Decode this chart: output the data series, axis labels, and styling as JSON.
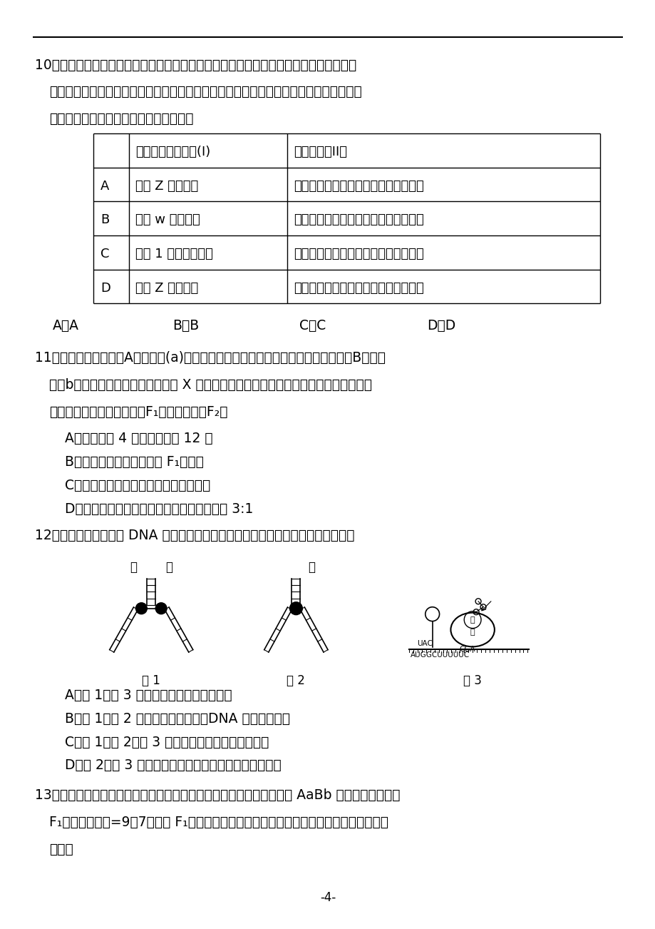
{
  "page_num": "-4-",
  "q10_text1": "10．某养鸡场主以卖肉鸡为主要创收手段。由于公鸡肉味相对于母鸡更鲜美，其价格也更",
  "q10_text2": "高。场主想在幼年期就卖掉雌鸡，留下雄鸡以节约成本。根据伴性遗传的特点，请你帮他",
  "q10_text3": "选择一种合适的遗传标志物和恰当的方案",
  "table_header_col1": "遗传标志物的位置(I)",
  "table_header_col2": "杂交类型（II）",
  "table_row_A_col0": "A",
  "table_row_A_col1": "位于 Z 染色体上",
  "table_row_A_col2": "隐性表型的雌鸡与显性纯合子雄鸡杂交",
  "table_row_B_col0": "B",
  "table_row_B_col1": "位于 w 染色体上",
  "table_row_B_col2": "隐性表型的雌鸡与显性纯合子雄鸡杂交",
  "table_row_C_col0": "C",
  "table_row_C_col1": "位于 1 条常染色体上",
  "table_row_C_col2": "隐性表型的雌鸡与显性纯合子雄鸡杂交",
  "table_row_D_col0": "D",
  "table_row_D_col1": "位于 Z 染色体上",
  "table_row_D_col2": "显性表型的雌鸡与隐性纯合子雄鸡杂交",
  "q10_optA": "A．A",
  "q10_optB": "B．B",
  "q10_optC": "C．C",
  "q10_optD": "D．D",
  "q11_text1": "11．果蝇中，正常翅（A）对短翅(a)为显性，相关等位基因位于常染色体上；红眼（B）对白",
  "q11_text2": "眼（b）为显性，相关等位基因位于 X 染色体上。现有一只纯合红眼短翅雌果蝇和一只纯",
  "q11_text3": "合白眼正常翅雄果蝇杂交，F₁雌雄交配，则F₂中",
  "q11_A": "A．表现型有 4 种，基因型有 12 种",
  "q11_B": "B．雄果蝇的红眼基因来自 F₁的父方",
  "q11_C": "C．雌果蝇中纯合子与杂合子的比例相等",
  "q11_D": "D．雌果蝇中正常翅个体与短翅个体的比例为 3:1",
  "q12_text1": "12．下图是真核细胞中 DNA 分子复制、基因表达的示意图，下列相关叙述正确的是",
  "q12_fig_label1": "图 1",
  "q12_fig_label2": "图 2",
  "q12_fig_label3": "图 3",
  "q12_A": "A．图 1、图 3 过程都主要发生在细胞核内",
  "q12_B": "B．图 1、图 2 过程都需要解旋酶、DNA 聚合酶的催化",
  "q12_C": "C．图 1、图 2、图 3 过程都遵循碱基互补配对原则",
  "q12_D": "D．图 2、图 3 过程所需原料分别是脱氧核苷酸、氨基酸",
  "q13_text1": "13．已知某品种油菜粒色受两对等位基因控制（独立遗传），基因型为 AaBb 的黄粒油菜自交，",
  "q13_text2": "F₁中黄粒：黑粒=9：7。现将 F₁中全部的黄粒个体进行测交，则后代中黑粒纯合子所占的",
  "q13_text3": "比例是"
}
